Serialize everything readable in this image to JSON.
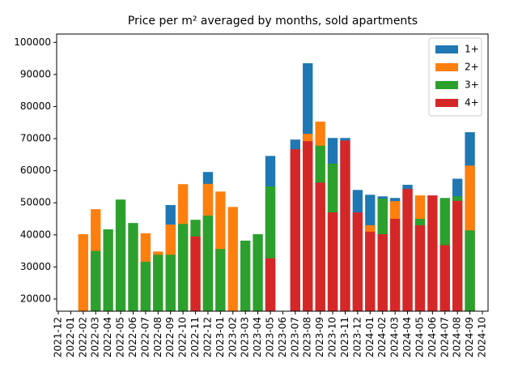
{
  "chart_data": {
    "type": "bar",
    "title": "Price per m² averaged by months, sold apartments",
    "categories": [
      "2021-12",
      "2022-01",
      "2022-02",
      "2022-03",
      "2022-04",
      "2022-05",
      "2022-06",
      "2022-07",
      "2022-08",
      "2022-09",
      "2022-10",
      "2022-11",
      "2022-12",
      "2023-01",
      "2023-02",
      "2023-03",
      "2023-04",
      "2023-05",
      "2023-06",
      "2023-07",
      "2023-08",
      "2023-09",
      "2023-10",
      "2023-11",
      "2023-12",
      "2024-01",
      "2024-02",
      "2024-03",
      "2024-04",
      "2024-05",
      "2024-06",
      "2024-07",
      "2024-08",
      "2024-09",
      "2024-10"
    ],
    "series": [
      {
        "name": "1+",
        "color": "#1f77b4",
        "values": [
          null,
          null,
          null,
          null,
          null,
          null,
          null,
          null,
          null,
          49300,
          null,
          null,
          59600,
          null,
          null,
          null,
          null,
          64600,
          null,
          69700,
          93500,
          null,
          70200,
          70200,
          54000,
          52500,
          52000,
          51500,
          55600,
          null,
          null,
          null,
          57500,
          72000,
          null
        ]
      },
      {
        "name": "2+",
        "color": "#ff7f0e",
        "values": [
          null,
          null,
          40200,
          48000,
          null,
          null,
          null,
          40500,
          34800,
          43200,
          55800,
          null,
          55900,
          53500,
          48700,
          null,
          null,
          null,
          null,
          null,
          71500,
          75300,
          null,
          null,
          null,
          43000,
          null,
          50500,
          null,
          52300,
          null,
          null,
          null,
          61600,
          null
        ]
      },
      {
        "name": "3+",
        "color": "#2ca02c",
        "values": [
          null,
          null,
          null,
          35000,
          41700,
          51000,
          43700,
          31600,
          33800,
          33800,
          43400,
          44700,
          46000,
          35600,
          null,
          38200,
          40200,
          55100,
          null,
          null,
          null,
          67800,
          62200,
          null,
          null,
          null,
          51300,
          null,
          null,
          45000,
          null,
          51500,
          52000,
          41400,
          null
        ]
      },
      {
        "name": "4+",
        "color": "#d62728",
        "values": [
          null,
          null,
          null,
          null,
          null,
          null,
          null,
          null,
          null,
          null,
          null,
          39500,
          null,
          null,
          null,
          null,
          null,
          32700,
          null,
          66700,
          69200,
          56300,
          47000,
          69400,
          47000,
          41000,
          40200,
          45000,
          54300,
          43000,
          52300,
          36800,
          50600,
          null,
          null
        ]
      }
    ],
    "ylim": [
      16200,
      102600
    ],
    "yticks": [
      20000,
      30000,
      40000,
      50000,
      60000,
      70000,
      80000,
      90000,
      100000
    ],
    "legend": "upper right"
  }
}
